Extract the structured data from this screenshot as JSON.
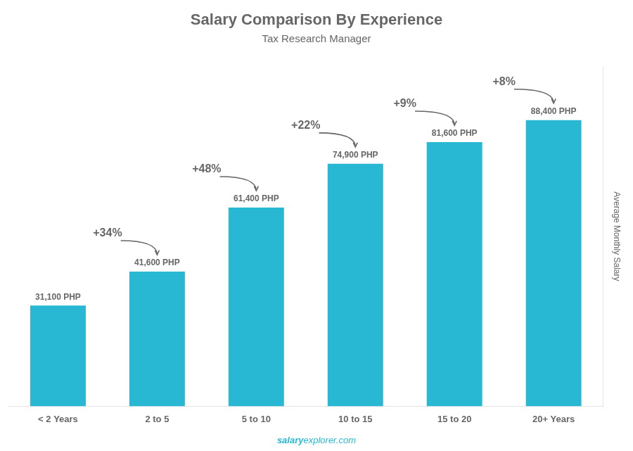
{
  "chart_data": {
    "type": "bar",
    "title": "Salary Comparison By Experience",
    "subtitle": "Tax Research Manager",
    "categories": [
      "< 2 Years",
      "2 to 5",
      "5 to 10",
      "10 to 15",
      "15 to 20",
      "20+ Years"
    ],
    "values": [
      31100,
      41600,
      61400,
      74900,
      81600,
      88400
    ],
    "value_labels": [
      "31,100 PHP",
      "41,600 PHP",
      "61,400 PHP",
      "74,900 PHP",
      "81,600 PHP",
      "88,400 PHP"
    ],
    "data_labels": true,
    "color": "#29b8d4",
    "y_label": "Average Monthly Salary",
    "ylim": [
      0,
      105000
    ],
    "yticks": [],
    "tick_labels": "x",
    "grid": false,
    "legend": false,
    "annotations": [
      {
        "text": "+34%",
        "from": "< 2 Years",
        "to": "2 to 5"
      },
      {
        "text": "+48%",
        "from": "2 to 5",
        "to": "5 to 10"
      },
      {
        "text": "+22%",
        "from": "5 to 10",
        "to": "10 to 15"
      },
      {
        "text": "+9%",
        "from": "10 to 15",
        "to": "15 to 20"
      },
      {
        "text": "+8%",
        "from": "15 to 20",
        "to": "20+ Years"
      }
    ],
    "footer": [
      "salary",
      "explorer.com"
    ]
  }
}
